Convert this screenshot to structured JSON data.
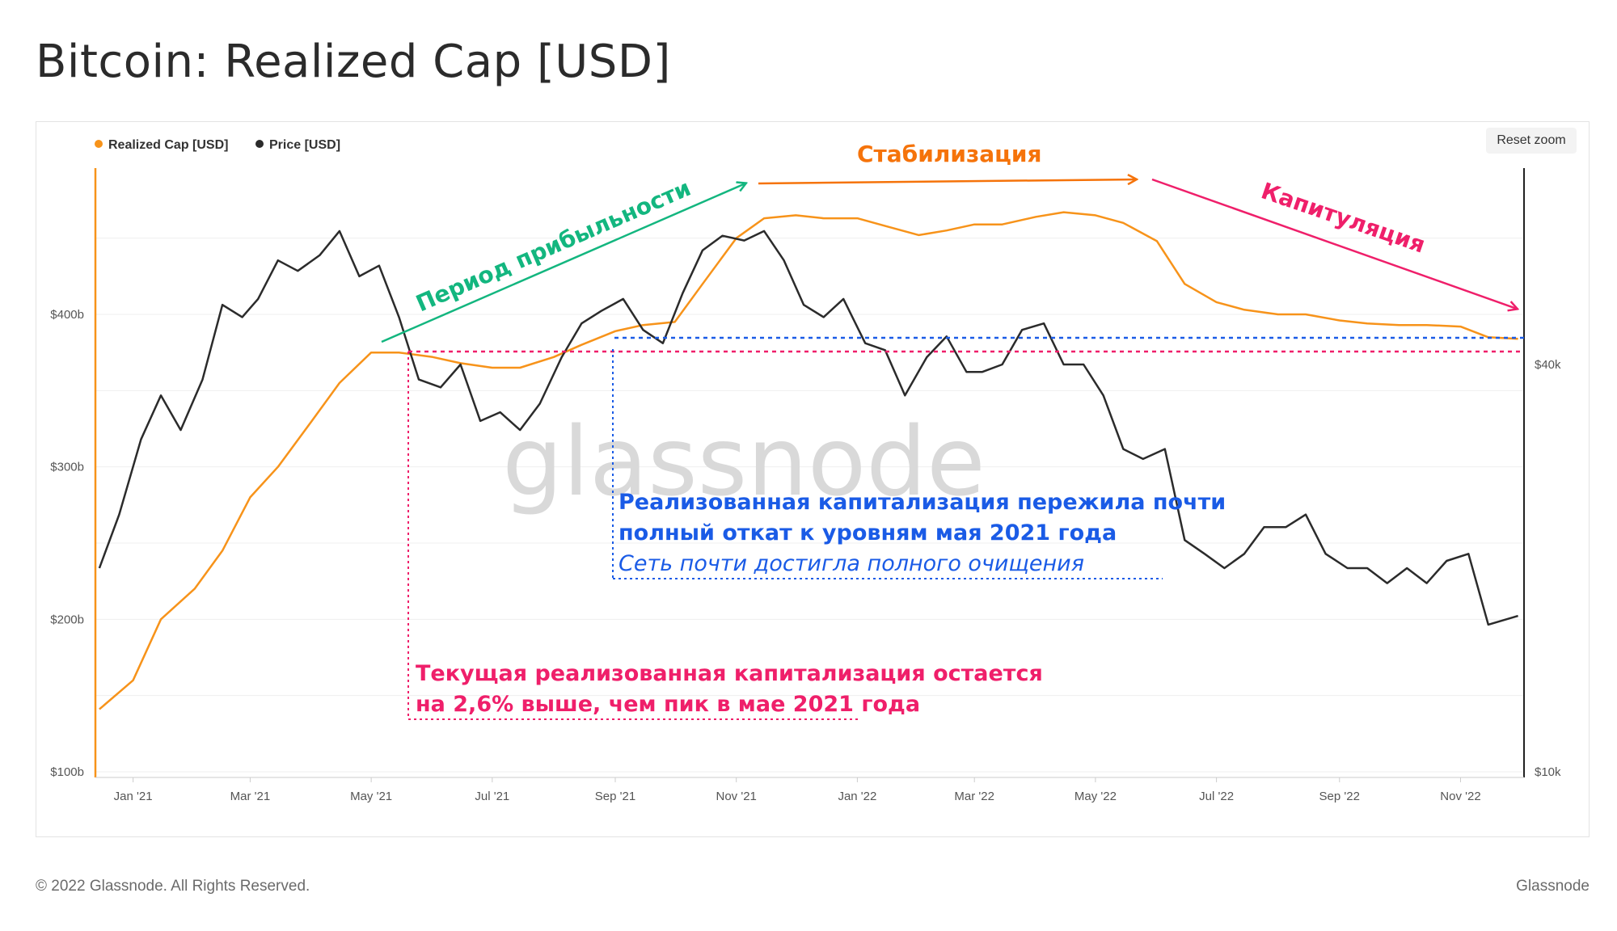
{
  "title": "Bitcoin: Realized Cap [USD]",
  "toolbar": {
    "reset_zoom": "Reset zoom"
  },
  "footer": {
    "copyright": "© 2022 Glassnode. All Rights Reserved.",
    "brand": "Glassnode"
  },
  "watermark": "glassnode",
  "colors": {
    "realized_cap": "#f7931a",
    "price": "#2b2b2b",
    "green": "#13b67f",
    "orange": "#f5730a",
    "pink": "#ef1f6a",
    "blue": "#1a5be6"
  },
  "chart_data": {
    "type": "line",
    "x_ticks": [
      "Jan '21",
      "Mar '21",
      "May '21",
      "Jul '21",
      "Sep '21",
      "Nov '21",
      "Jan '22",
      "Mar '22",
      "May '22",
      "Jul '22",
      "Sep '22",
      "Nov '22"
    ],
    "left_axis": {
      "label": "",
      "ticks": [
        "$100b",
        "$200b",
        "$300b",
        "$400b"
      ],
      "values": [
        100,
        200,
        300,
        400
      ],
      "unit": "billion USD"
    },
    "right_axis": {
      "label": "",
      "ticks": [
        "$10k",
        "$40k"
      ],
      "values": [
        10000,
        40000
      ],
      "scale": "log"
    },
    "legend": {
      "position": "top-left",
      "items": [
        "Realized Cap [USD]",
        "Price [USD]"
      ]
    },
    "grid": true,
    "series": [
      {
        "name": "Realized Cap [USD]",
        "axis": "left",
        "x": [
          "2020-12-15",
          "2021-01-01",
          "2021-01-15",
          "2021-02-01",
          "2021-02-15",
          "2021-03-01",
          "2021-03-15",
          "2021-04-01",
          "2021-04-15",
          "2021-05-01",
          "2021-05-15",
          "2021-06-01",
          "2021-06-15",
          "2021-07-01",
          "2021-07-15",
          "2021-08-01",
          "2021-08-15",
          "2021-09-01",
          "2021-09-15",
          "2021-10-01",
          "2021-10-15",
          "2021-11-01",
          "2021-11-15",
          "2021-12-01",
          "2021-12-15",
          "2022-01-01",
          "2022-01-15",
          "2022-02-01",
          "2022-02-15",
          "2022-03-01",
          "2022-03-15",
          "2022-04-01",
          "2022-04-15",
          "2022-05-01",
          "2022-05-15",
          "2022-06-01",
          "2022-06-15",
          "2022-07-01",
          "2022-07-15",
          "2022-08-01",
          "2022-08-15",
          "2022-09-01",
          "2022-09-15",
          "2022-10-01",
          "2022-10-15",
          "2022-11-01",
          "2022-11-15",
          "2022-11-30"
        ],
        "values": [
          141,
          160,
          200,
          220,
          245,
          280,
          300,
          330,
          355,
          375,
          375,
          372,
          368,
          365,
          365,
          372,
          380,
          389,
          393,
          395,
          420,
          450,
          463,
          465,
          463,
          463,
          458,
          452,
          455,
          459,
          459,
          464,
          467,
          465,
          460,
          448,
          420,
          408,
          403,
          400,
          400,
          396,
          394,
          393,
          393,
          392,
          385,
          384
        ]
      },
      {
        "name": "Price [USD]",
        "axis": "right",
        "x": [
          "2020-12-15",
          "2020-12-25",
          "2021-01-05",
          "2021-01-15",
          "2021-01-25",
          "2021-02-05",
          "2021-02-15",
          "2021-02-25",
          "2021-03-05",
          "2021-03-15",
          "2021-03-25",
          "2021-04-05",
          "2021-04-15",
          "2021-04-25",
          "2021-05-05",
          "2021-05-15",
          "2021-05-25",
          "2021-06-05",
          "2021-06-15",
          "2021-06-25",
          "2021-07-05",
          "2021-07-15",
          "2021-07-25",
          "2021-08-05",
          "2021-08-15",
          "2021-08-25",
          "2021-09-05",
          "2021-09-15",
          "2021-09-25",
          "2021-10-05",
          "2021-10-15",
          "2021-10-25",
          "2021-11-05",
          "2021-11-15",
          "2021-11-25",
          "2021-12-05",
          "2021-12-15",
          "2021-12-25",
          "2022-01-05",
          "2022-01-15",
          "2022-01-25",
          "2022-02-05",
          "2022-02-15",
          "2022-02-25",
          "2022-03-05",
          "2022-03-15",
          "2022-03-25",
          "2022-04-05",
          "2022-04-15",
          "2022-04-25",
          "2022-05-05",
          "2022-05-15",
          "2022-05-25",
          "2022-06-05",
          "2022-06-15",
          "2022-06-25",
          "2022-07-05",
          "2022-07-15",
          "2022-07-25",
          "2022-08-05",
          "2022-08-15",
          "2022-08-25",
          "2022-09-05",
          "2022-09-15",
          "2022-09-25",
          "2022-10-05",
          "2022-10-15",
          "2022-10-25",
          "2022-11-05",
          "2022-11-15",
          "2022-11-30"
        ],
        "values": [
          20000,
          24000,
          31000,
          36000,
          32000,
          38000,
          49000,
          47000,
          50000,
          57000,
          55000,
          58000,
          63000,
          54000,
          56000,
          47000,
          38000,
          37000,
          40000,
          33000,
          34000,
          32000,
          35000,
          41000,
          46000,
          48000,
          50000,
          45000,
          43000,
          51000,
          59000,
          62000,
          61000,
          63000,
          57000,
          49000,
          47000,
          50000,
          43000,
          42000,
          36000,
          41000,
          44000,
          39000,
          39000,
          40000,
          45000,
          46000,
          40000,
          40000,
          36000,
          30000,
          29000,
          30000,
          22000,
          21000,
          20000,
          21000,
          23000,
          23000,
          24000,
          21000,
          20000,
          20000,
          19000,
          20000,
          19000,
          20500,
          21000,
          16500,
          17000
        ]
      }
    ],
    "annotations": [
      {
        "id": "profit",
        "text": "Период прибыльности"
      },
      {
        "id": "stab",
        "text": "Стабилизация"
      },
      {
        "id": "cap",
        "text": "Капитуляция"
      },
      {
        "id": "blue1",
        "text": "Реализованная капитализация пережила почти"
      },
      {
        "id": "blue2",
        "text": "полный откат к уровням мая 2021 года"
      },
      {
        "id": "blue3",
        "text": "Сеть почти достигла полного очищения"
      },
      {
        "id": "pink1",
        "text": "Текущая реализованная капитализация остается"
      },
      {
        "id": "pink2",
        "text": "на 2,6% выше, чем пик в мае 2021 года"
      }
    ]
  }
}
